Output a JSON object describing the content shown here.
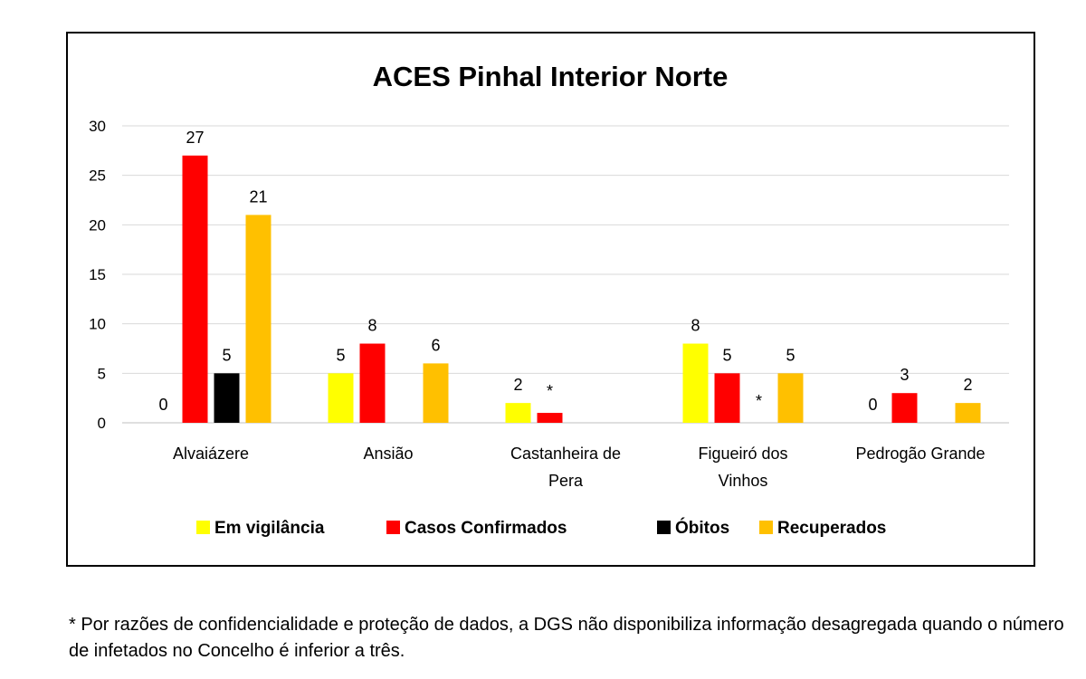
{
  "chart_data": {
    "type": "bar",
    "title": "ACES Pinhal Interior Norte",
    "categories": [
      [
        "Alvaiázere"
      ],
      [
        "Ansião"
      ],
      [
        "Castanheira de",
        "Pera"
      ],
      [
        "Figueiró dos",
        "Vinhos"
      ],
      [
        "Pedrogão Grande"
      ]
    ],
    "series": [
      {
        "name": "Em vigilância",
        "color": "#FFFF00",
        "values": [
          0,
          5,
          2,
          8,
          0
        ]
      },
      {
        "name": "Casos Confirmados",
        "color": "#FF0000",
        "values": [
          27,
          8,
          1,
          5,
          3
        ]
      },
      {
        "name": "Óbitos",
        "color": "#000000",
        "values": [
          null,
          null,
          null,
          null,
          null
        ]
      },
      {
        "name": "Recuperados",
        "color": "#FFC000",
        "values": [
          21,
          6,
          null,
          5,
          2
        ]
      }
    ],
    "obitos_values": [
      5,
      null,
      null,
      null,
      null
    ],
    "data_labels": [
      [
        "0",
        "27",
        "5",
        "21"
      ],
      [
        "5",
        "8",
        "",
        "6"
      ],
      [
        "2",
        "*",
        "",
        ""
      ],
      [
        "8",
        "5",
        "*",
        "5"
      ],
      [
        "0",
        "3",
        "",
        "2"
      ]
    ],
    "yticks": [
      "0",
      "5",
      "10",
      "15",
      "20",
      "25",
      "30"
    ],
    "ylim": [
      0,
      30
    ],
    "grid": true,
    "legend_position": "bottom"
  },
  "footnote": "* Por razões de confidencialidade e proteção de dados, a DGS não disponibiliza informação desagregada quando o número de infetados no Concelho é inferior a três."
}
